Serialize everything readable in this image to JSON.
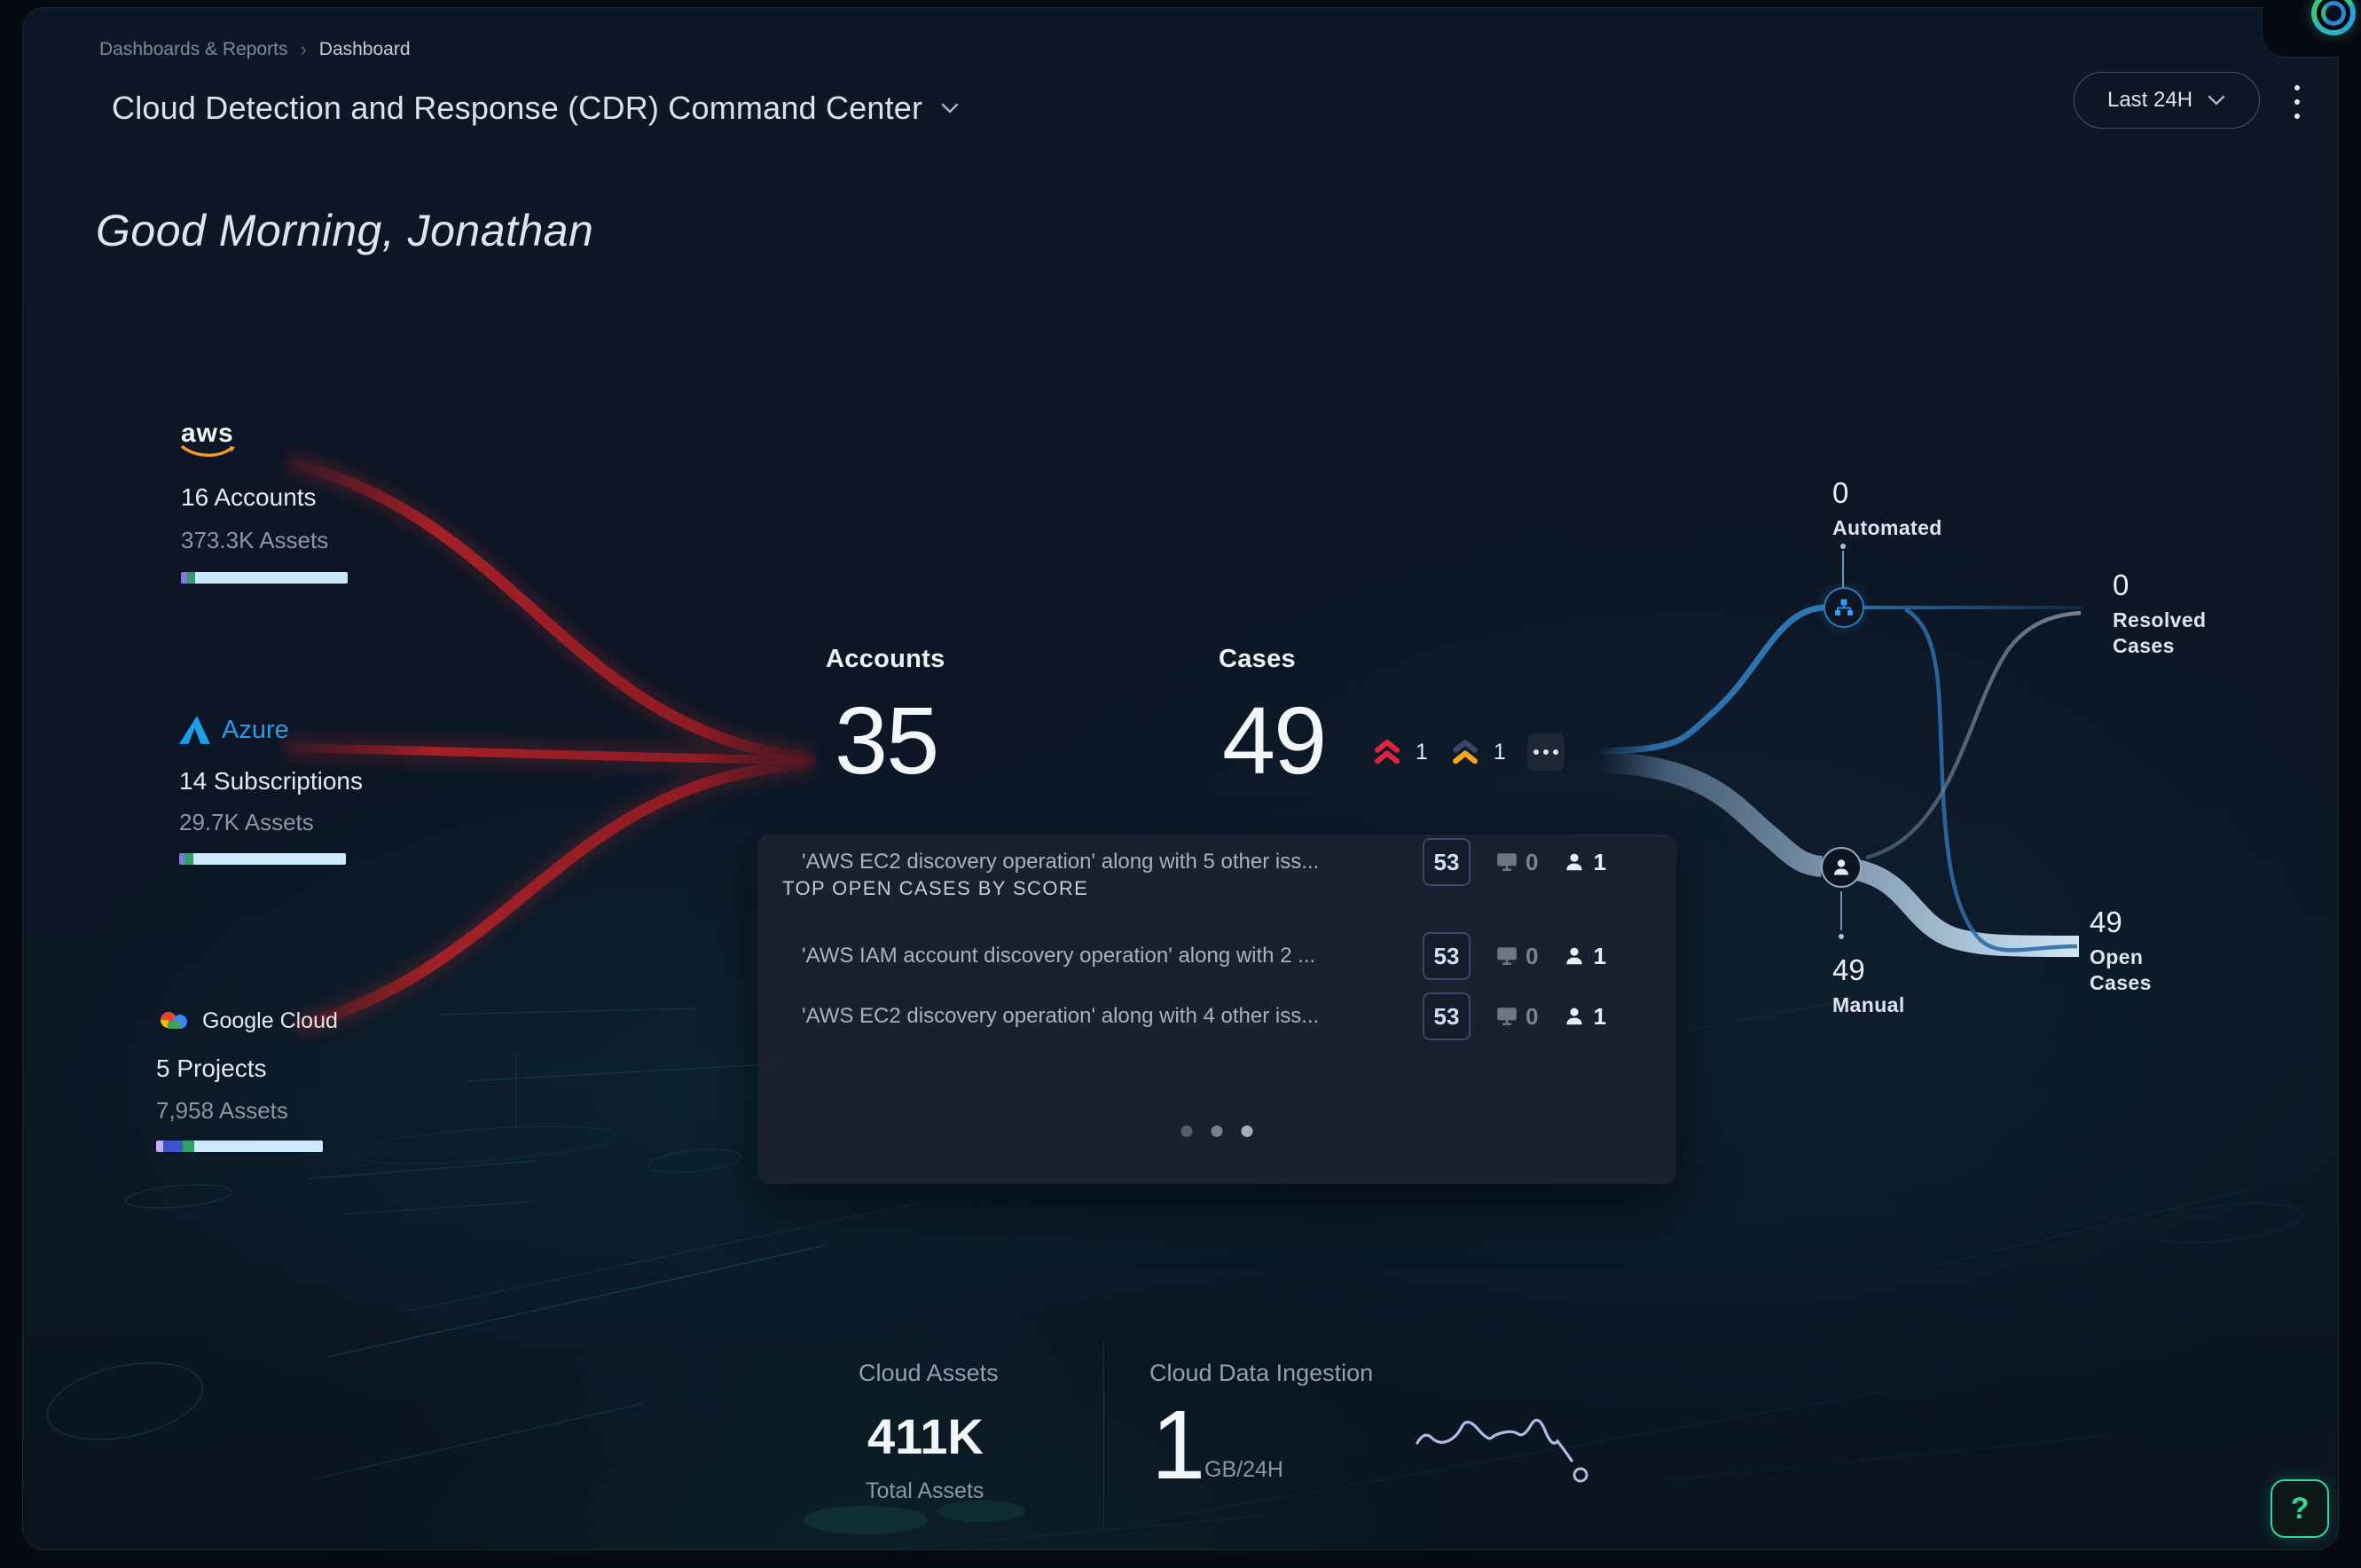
{
  "header": {
    "breadcrumb": {
      "parent": "Dashboards & Reports",
      "current": "Dashboard"
    },
    "title": "Cloud Detection and Response (CDR) Command Center",
    "time_range": "Last 24H"
  },
  "greeting": "Good Morning, Jonathan",
  "providers": [
    {
      "name": "aws",
      "count_label": "16 Accounts",
      "assets_label": "373.3K Assets",
      "bar_segments": [
        {
          "c": "#8678d8",
          "w": 7
        },
        {
          "c": "#2f9e68",
          "w": 9
        },
        {
          "c": "#c9e9fb",
          "w": 172
        }
      ]
    },
    {
      "name": "Azure",
      "count_label": "14 Subscriptions",
      "assets_label": "29.7K Assets",
      "bar_segments": [
        {
          "c": "#8678d8",
          "w": 6
        },
        {
          "c": "#2f9e68",
          "w": 10
        },
        {
          "c": "#cdeafc",
          "w": 172
        }
      ]
    },
    {
      "name": "Google Cloud",
      "name_part1": "Google",
      "name_part2": "Cloud",
      "count_label": "5 Projects",
      "assets_label": "7,958 Assets",
      "bar_segments": [
        {
          "c": "#c3b1ee",
          "w": 8
        },
        {
          "c": "#3c56c9",
          "w": 22
        },
        {
          "c": "#2f9e68",
          "w": 13
        },
        {
          "c": "#cdeafc",
          "w": 145
        }
      ]
    }
  ],
  "accounts": {
    "label": "Accounts",
    "value": "35"
  },
  "cases": {
    "label": "Cases",
    "value": "49",
    "critical_count": "1",
    "high_count": "1"
  },
  "top_cases": {
    "title": "TOP OPEN CASES BY SCORE",
    "rows": [
      {
        "name": "'AWS EC2 discovery operation' along with 5 other iss...",
        "score": "53",
        "alerts": "0",
        "assignees": "1"
      },
      {
        "name": "'AWS IAM account discovery operation' along with 2 ...",
        "score": "53",
        "alerts": "0",
        "assignees": "1"
      },
      {
        "name": "'AWS EC2 discovery operation' along with 4 other iss...",
        "score": "53",
        "alerts": "0",
        "assignees": "1"
      }
    ],
    "page_dots": 3,
    "active_dot": 2
  },
  "flow": {
    "automated": {
      "value": "0",
      "label": "Automated"
    },
    "resolved": {
      "value": "0",
      "label": "Resolved Cases"
    },
    "manual": {
      "value": "49",
      "label": "Manual"
    },
    "open": {
      "value": "49",
      "label": "Open Cases"
    }
  },
  "footer": {
    "cloud_assets": {
      "title": "Cloud Assets",
      "value": "411K",
      "caption": "Total Assets"
    },
    "ingestion": {
      "title": "Cloud Data Ingestion",
      "value": "1",
      "unit": "GB/24H"
    }
  },
  "help_label": "?",
  "colors": {
    "severity_critical": "#e0233c",
    "severity_high": "#f2a71c",
    "severity_high_top": "#3a4763",
    "score_border": "#39486b",
    "help_accent": "#35d49a",
    "red_flow": "#a32028",
    "blue_flow": "#2c6ba5",
    "ribbon_flow": "#9fb7cb",
    "aws_orange": "#f59a23",
    "azure_blue": "#1b9de8",
    "sparkline": "#b4b9e4"
  }
}
